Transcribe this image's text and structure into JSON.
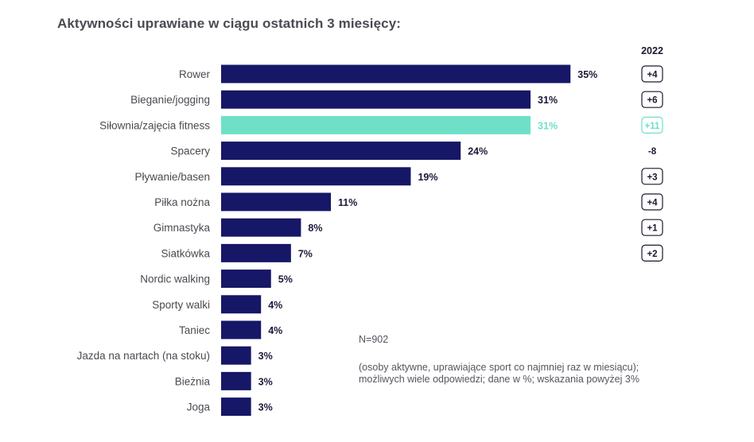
{
  "title": "Aktywności uprawiane w ciągu ostatnich 3 miesięcy:",
  "colors": {
    "bar": "#161766",
    "highlight": "#6ee0c8",
    "text": "#4a4a52",
    "label_dark": "#1a1a3a"
  },
  "chart_data": {
    "type": "bar",
    "orientation": "horizontal",
    "categories": [
      "Rower",
      "Bieganie/jogging",
      "Siłownia/zajęcia fitness",
      "Spacery",
      "Pływanie/basen",
      "Piłka nożna",
      "Gimnastyka",
      "Siatkówka",
      "Nordic walking",
      "Sporty walki",
      "Taniec",
      "Jazda na nartach (na stoku)",
      "Bieżnia",
      "Joga"
    ],
    "values": [
      35,
      31,
      31,
      24,
      19,
      11,
      8,
      7,
      5,
      4,
      4,
      3,
      3,
      3
    ],
    "value_labels": [
      "35%",
      "31%",
      "31%",
      "24%",
      "19%",
      "11%",
      "8%",
      "7%",
      "5%",
      "4%",
      "4%",
      "3%",
      "3%",
      "3%"
    ],
    "highlight_index": 2,
    "comparison_header": "2022",
    "changes": [
      "+4",
      "+6",
      "+11",
      "-8",
      "+3",
      "+4",
      "+1",
      "+2",
      null,
      null,
      null,
      null,
      null,
      null
    ],
    "change_boxed": [
      true,
      true,
      true,
      false,
      true,
      true,
      true,
      true,
      false,
      false,
      false,
      false,
      false,
      false
    ],
    "unit": "%",
    "grid": false
  },
  "note": {
    "sample": "N=902",
    "description": "(osoby aktywne, uprawiające sport co najmniej raz w miesiącu); możliwych wiele odpowiedzi; dane w %; wskazania powyżej 3%"
  }
}
